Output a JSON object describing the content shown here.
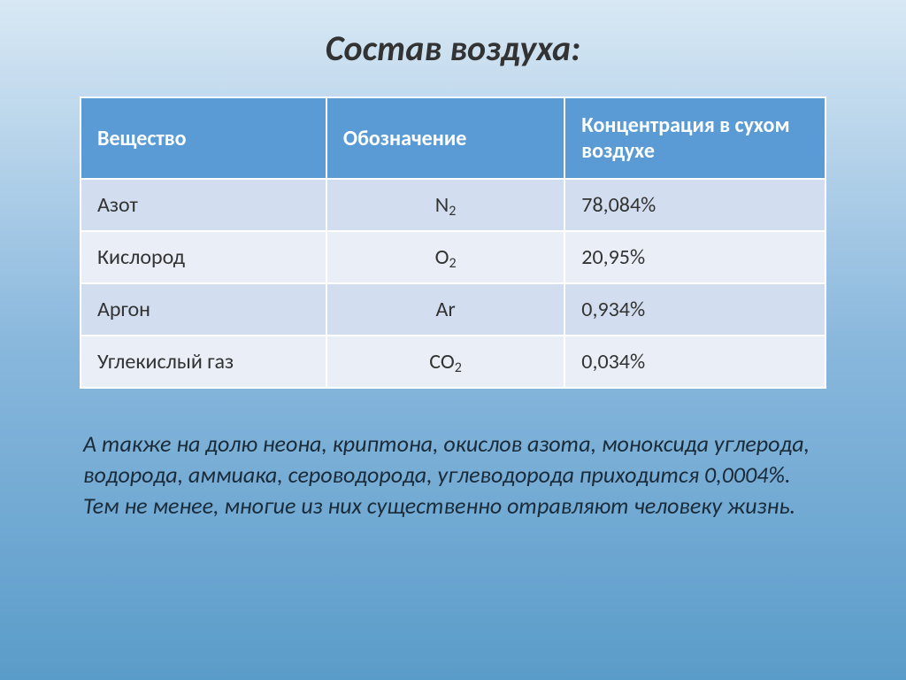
{
  "title": "Состав воздуха:",
  "table": {
    "header_bg": "#5b9bd5",
    "header_color": "#ffffff",
    "row_colors": [
      "#d2deef",
      "#eaeff7"
    ],
    "text_color": "#333333",
    "columns": [
      {
        "label": "Вещество",
        "width": "33%"
      },
      {
        "label": "Обозначение",
        "width": "32%"
      },
      {
        "label": "Концентрация в сухом воздухе",
        "width": "35%"
      }
    ],
    "rows": [
      {
        "name": "Азот",
        "symbol": "N",
        "sub": "2",
        "value": "78,084%"
      },
      {
        "name": "Кислород",
        "symbol": "O",
        "sub": "2",
        "value": "20,95%"
      },
      {
        "name": "Аргон",
        "symbol": "Ar",
        "sub": "",
        "value": "0,934%"
      },
      {
        "name": "Углекислый газ",
        "symbol": "CO",
        "sub": "2",
        "value": "0,034%"
      }
    ]
  },
  "footnote": "А также на долю неона, криптона, окислов азота, моноксида углерода, водорода, аммиака, сероводорода, углеводорода приходится 0,0004%. Тем не менее, многие из них существенно отравляют человеку жизнь.",
  "typography": {
    "title_fontsize": 40,
    "title_style": "italic",
    "header_fontsize": 24,
    "cell_fontsize": 24,
    "footnote_fontsize": 26,
    "footnote_style": "italic",
    "font_family": "Calibri"
  },
  "background": {
    "gradient_top": "#d8e8f4",
    "gradient_mid": "#8ab8dd",
    "gradient_bottom": "#5a9cc9"
  }
}
